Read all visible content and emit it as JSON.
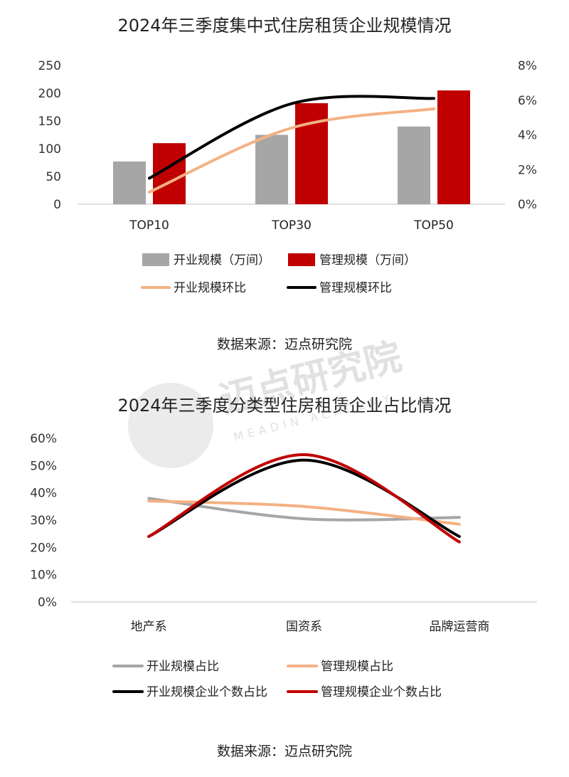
{
  "watermark": {
    "name": "迈点研究院",
    "sub": "MEADIN ACADEMY"
  },
  "charts": [
    {
      "source": "数据来源：迈点研究院"
    },
    {
      "source": "数据来源：迈点研究院"
    }
  ],
  "chart_data": [
    {
      "type": "bar",
      "title": "2024年三季度集中式住房租赁企业规模情况",
      "categories": [
        "TOP10",
        "TOP30",
        "TOP50"
      ],
      "ylim": [
        0,
        250
      ],
      "y_ticks": [
        "0",
        "50",
        "100",
        "150",
        "200",
        "250"
      ],
      "y2lim": [
        0,
        8
      ],
      "y2_ticks": [
        "0%",
        "2%",
        "4%",
        "6%",
        "8%"
      ],
      "legend_position": "bottom",
      "series": [
        {
          "name": "开业规模（万间）",
          "kind": "bar",
          "axis": "left",
          "color": "#a6a6a6",
          "values": [
            77,
            125,
            140
          ]
        },
        {
          "name": "管理规模（万间）",
          "kind": "bar",
          "axis": "left",
          "color": "#c00000",
          "values": [
            110,
            182,
            205
          ]
        },
        {
          "name": "开业规模环比",
          "kind": "line",
          "axis": "right",
          "color": "#f4b183",
          "values": [
            0.7,
            4.4,
            5.5
          ]
        },
        {
          "name": "管理规模环比",
          "kind": "line",
          "axis": "right",
          "color": "#000000",
          "values": [
            1.5,
            5.8,
            6.1
          ]
        }
      ]
    },
    {
      "type": "line",
      "title": "2024年三季度分类型住房租赁企业占比情况",
      "categories": [
        "地产系",
        "国资系",
        "品牌运营商"
      ],
      "ylim": [
        0,
        60
      ],
      "y_ticks": [
        "0%",
        "10%",
        "20%",
        "30%",
        "40%",
        "50%",
        "60%"
      ],
      "legend_position": "bottom",
      "series": [
        {
          "name": "开业规模占比",
          "color": "#a6a6a6",
          "values": [
            38,
            30.5,
            31
          ]
        },
        {
          "name": "管理规模占比",
          "color": "#f4b183",
          "values": [
            37,
            35,
            28.5
          ]
        },
        {
          "name": "开业规模企业个数占比",
          "color": "#000000",
          "values": [
            24,
            52,
            24
          ]
        },
        {
          "name": "管理规模企业个数占比",
          "color": "#c00000",
          "values": [
            24,
            54,
            22
          ]
        }
      ]
    }
  ]
}
